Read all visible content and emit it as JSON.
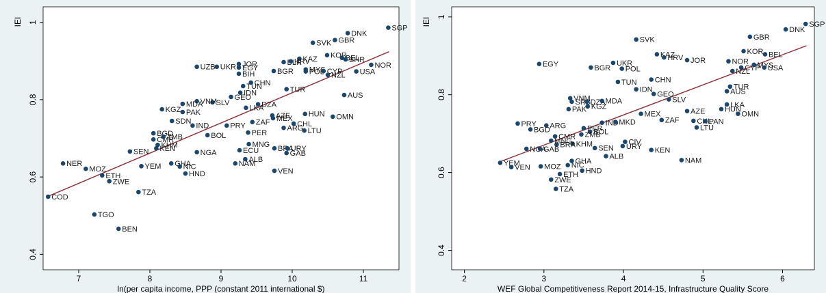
{
  "chart_data": [
    {
      "type": "scatter",
      "x_label": "ln(per capita income, PPP (constant 2011 international $)",
      "y_label": "IEI",
      "xlim": [
        6.5,
        11.5
      ],
      "ylim": [
        0.36,
        1.04
      ],
      "xticks": [
        7,
        8,
        9,
        10,
        11
      ],
      "yticks": [
        0.4,
        0.6,
        0.8,
        1
      ],
      "color": "#1a476f",
      "fit_color": "#90353b",
      "labels": [
        "SGP",
        "DNK",
        "GBR",
        "SVK",
        "KOR",
        "BEL",
        "BHR",
        "NOR",
        "KAZ",
        "BLR",
        "HRV",
        "MYS",
        "POL",
        "CYP",
        "NZL",
        "USA",
        "BGR",
        "UZB",
        "UKR",
        "JOR",
        "EGY",
        "BIH",
        "TUN",
        "CHN",
        "TUR",
        "AUS",
        "GEO",
        "IDN",
        "SLV",
        "VNM",
        "MDA",
        "LKA",
        "DZA",
        "KGZ",
        "PAK",
        "HUN",
        "OMN",
        "AZE",
        "MEX",
        "SDN",
        "ZAF",
        "IND",
        "PRY",
        "PER",
        "ARG",
        "CHL",
        "LTU",
        "BOL",
        "BGD",
        "CMR",
        "ZMB",
        "KHM",
        "KEN",
        "SEN",
        "NGA",
        "ECU",
        "MNG",
        "BRA",
        "URY",
        "GAB",
        "NER",
        "MOZ",
        "YEM",
        "GHA",
        "NIC",
        "HND",
        "ALB",
        "NAM",
        "VEN",
        "ETH",
        "ZWE",
        "TZA",
        "COD",
        "TGO",
        "BEN"
      ],
      "x": [
        11.35,
        10.78,
        10.6,
        10.29,
        10.49,
        10.7,
        10.75,
        11.11,
        10.1,
        9.88,
        9.98,
        10.19,
        10.19,
        10.44,
        10.5,
        10.9,
        9.74,
        8.66,
        8.94,
        9.25,
        9.25,
        9.25,
        9.31,
        9.42,
        9.92,
        10.73,
        9.14,
        9.27,
        8.88,
        8.66,
        8.46,
        9.35,
        9.52,
        8.17,
        8.46,
        10.18,
        10.57,
        9.72,
        9.73,
        8.31,
        9.44,
        8.6,
        9.08,
        9.38,
        9.88,
        10.02,
        10.17,
        8.81,
        8.05,
        8.05,
        8.19,
        8.11,
        8.09,
        7.72,
        8.66,
        9.26,
        9.39,
        9.75,
        9.93,
        9.92,
        6.78,
        7.1,
        7.88,
        8.3,
        8.42,
        8.5,
        9.34,
        9.2,
        9.75,
        7.33,
        7.43,
        7.84,
        6.57,
        7.22,
        7.56
      ],
      "values": [
        0.986,
        0.972,
        0.954,
        0.947,
        0.915,
        0.908,
        0.904,
        0.89,
        0.906,
        0.897,
        0.899,
        0.878,
        0.873,
        0.874,
        0.864,
        0.873,
        0.874,
        0.885,
        0.885,
        0.892,
        0.883,
        0.867,
        0.835,
        0.844,
        0.827,
        0.812,
        0.807,
        0.818,
        0.793,
        0.796,
        0.789,
        0.779,
        0.788,
        0.775,
        0.768,
        0.763,
        0.756,
        0.759,
        0.752,
        0.745,
        0.742,
        0.733,
        0.733,
        0.715,
        0.727,
        0.738,
        0.72,
        0.708,
        0.713,
        0.697,
        0.704,
        0.683,
        0.674,
        0.666,
        0.664,
        0.669,
        0.685,
        0.674,
        0.674,
        0.662,
        0.635,
        0.621,
        0.628,
        0.635,
        0.627,
        0.609,
        0.646,
        0.635,
        0.616,
        0.604,
        0.589,
        0.561,
        0.549,
        0.503,
        0.466
      ],
      "fit": {
        "x": [
          6.57,
          11.36
        ],
        "values": [
          0.55,
          0.924
        ]
      }
    },
    {
      "type": "scatter",
      "x_label": "WEF Global Competitiveness Report 2014-15, Infrastructure Quality Score",
      "y_label": "IEI",
      "xlim": [
        1.84,
        6.4
      ],
      "ylim": [
        0.35,
        1.026
      ],
      "xticks": [
        2,
        3,
        4,
        5,
        6
      ],
      "yticks": [
        0.4,
        0.6,
        0.8,
        1
      ],
      "color": "#1a476f",
      "fit_color": "#90353b",
      "labels": [
        "SGP",
        "DNK",
        "GBR",
        "SVK",
        "KOR",
        "BEL",
        "KAZ",
        "HRV",
        "JOR",
        "UKR",
        "NOR",
        "CYP",
        "MYS",
        "USA",
        "NZL",
        "EGY",
        "BGR",
        "POL",
        "CHN",
        "TUN",
        "IDN",
        "TUR",
        "GEO",
        "AUS",
        "SLV",
        "LKA",
        "HUN",
        "OMN",
        "VNM",
        "SRB",
        "DZA",
        "MDA",
        "KGZ",
        "PAK",
        "MEX",
        "AZE",
        "ZAF",
        "CHL",
        "PAN",
        "LTU",
        "PRY",
        "ARG",
        "BGD",
        "IND",
        "MKD",
        "PER",
        "CMR",
        "BOL",
        "ZMB",
        "CIV",
        "URY",
        "KHM",
        "BRA",
        "MNG",
        "SEN",
        "KEN",
        "NGA",
        "GAB",
        "ALB",
        "NAM",
        "YEM",
        "VEN",
        "MOZ",
        "NIC",
        "GHA",
        "HND",
        "ETH",
        "ZWE",
        "TZA"
      ],
      "x": [
        6.29,
        6.04,
        5.59,
        4.16,
        5.51,
        5.78,
        4.42,
        4.51,
        4.8,
        3.87,
        5.32,
        5.48,
        5.64,
        5.77,
        5.37,
        2.94,
        3.59,
        3.98,
        4.35,
        3.93,
        4.16,
        5.34,
        4.38,
        5.3,
        4.57,
        5.3,
        5.23,
        5.44,
        3.33,
        3.35,
        3.54,
        3.73,
        3.55,
        3.31,
        4.22,
        4.8,
        4.48,
        4.88,
        5.03,
        4.92,
        2.67,
        3.03,
        2.83,
        3.73,
        3.9,
        3.5,
        3.14,
        3.58,
        3.47,
        4.02,
        3.99,
        3.36,
        3.16,
        3.09,
        3.64,
        4.35,
        2.78,
        2.95,
        3.78,
        4.73,
        2.45,
        2.59,
        2.96,
        3.3,
        3.35,
        3.48,
        3.2,
        3.09,
        3.15
      ],
      "values": [
        0.982,
        0.968,
        0.949,
        0.942,
        0.912,
        0.904,
        0.904,
        0.896,
        0.889,
        0.882,
        0.886,
        0.87,
        0.877,
        0.87,
        0.861,
        0.879,
        0.87,
        0.867,
        0.839,
        0.833,
        0.814,
        0.821,
        0.802,
        0.809,
        0.788,
        0.775,
        0.763,
        0.751,
        0.791,
        0.782,
        0.782,
        0.784,
        0.77,
        0.763,
        0.751,
        0.758,
        0.735,
        0.733,
        0.732,
        0.716,
        0.726,
        0.721,
        0.711,
        0.728,
        0.73,
        0.714,
        0.693,
        0.705,
        0.698,
        0.679,
        0.668,
        0.674,
        0.672,
        0.682,
        0.663,
        0.658,
        0.661,
        0.661,
        0.642,
        0.632,
        0.625,
        0.614,
        0.616,
        0.619,
        0.63,
        0.605,
        0.596,
        0.582,
        0.558
      ],
      "fit": {
        "x": [
          2.45,
          6.3
        ],
        "values": [
          0.628,
          0.926
        ]
      }
    }
  ]
}
